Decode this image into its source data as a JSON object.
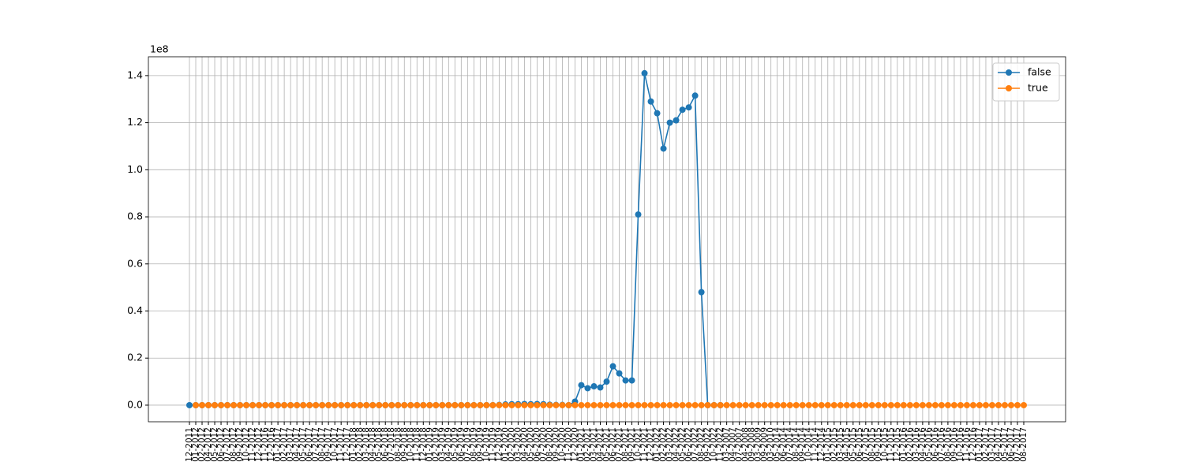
{
  "chart_data": {
    "type": "line",
    "y_offset_label": "1e8",
    "categories": [
      "12-2011",
      "01-2012",
      "02-2012",
      "04-2012",
      "05-2012",
      "06-2012",
      "07-2012",
      "08-2012",
      "09-2012",
      "10-2012",
      "11-2012",
      "12-2012",
      "11-2016",
      "12-2016",
      "01-2017",
      "02-2017",
      "03-2017",
      "04-2017",
      "05-2017",
      "06-2017",
      "07-2017",
      "08-2017",
      "09-2017",
      "10-2017",
      "11-2017",
      "12-2017",
      "01-2018",
      "02-2018",
      "03-2018",
      "04-2018",
      "05-2018",
      "06-2018",
      "07-2018",
      "08-2018",
      "09-2018",
      "10-2018",
      "11-2018",
      "12-2018",
      "01-2019",
      "02-2019",
      "03-2019",
      "04-2019",
      "05-2019",
      "06-2019",
      "07-2019",
      "08-2019",
      "09-2019",
      "10-2019",
      "11-2019",
      "12-2019",
      "01-2020",
      "02-2020",
      "03-2020",
      "04-2020",
      "05-2020",
      "06-2020",
      "07-2020",
      "08-2020",
      "09-2020",
      "10-2020",
      "11-2020",
      "12-2020",
      "01-2021",
      "02-2021",
      "03-2021",
      "04-2021",
      "05-2021",
      "06-2021",
      "07-2021",
      "08-2021",
      "09-2021",
      "10-2021",
      "11-2021",
      "12-2021",
      "01-2022",
      "02-2022",
      "03-2022",
      "04-2022",
      "05-2022",
      "06-2022",
      "07-2022",
      "08-2022",
      "09-2022",
      "10-2022",
      "11-2022",
      "03-2007",
      "04-2007",
      "07-2007",
      "04-2008",
      "09-2008",
      "03-2009",
      "09-2009",
      "03-2010",
      "05-2014",
      "06-2014",
      "07-2014",
      "08-2014",
      "09-2014",
      "10-2014",
      "11-2014",
      "12-2014",
      "01-2015",
      "02-2015",
      "03-2015",
      "04-2015",
      "05-2015",
      "06-2015",
      "07-2015",
      "08-2015",
      "09-2015",
      "10-2015",
      "11-2015",
      "12-2015",
      "01-2016",
      "02-2016",
      "03-2016",
      "04-2016",
      "05-2016",
      "06-2016",
      "07-2016",
      "08-2016",
      "09-2016",
      "10-2016",
      "11-2016",
      "12-2016",
      "01-2017",
      "02-2017",
      "03-2017",
      "04-2017",
      "05-2017",
      "06-2017",
      "07-2017",
      "08-2017"
    ],
    "series": [
      {
        "name": "false",
        "color": "#1f77b4",
        "values": [
          0,
          0,
          0,
          0,
          0,
          0,
          0,
          0,
          0,
          0,
          0,
          0,
          0,
          0,
          0,
          0,
          0,
          0,
          0,
          0,
          0,
          0,
          0,
          0,
          0,
          0,
          0,
          0,
          0,
          0,
          0,
          0,
          0,
          0,
          0,
          0,
          0,
          0,
          0,
          0,
          0,
          0,
          0,
          0,
          0,
          0,
          0,
          0,
          0,
          100000,
          300000,
          400000,
          400000,
          500000,
          400000,
          500000,
          400000,
          200000,
          100000,
          100000,
          0,
          1500000,
          8500000,
          7200000,
          8000000,
          7500000,
          10000000,
          16500000,
          13500000,
          10500000,
          10500000,
          81000000,
          141000000,
          129000000,
          124000000,
          109000000,
          120000000,
          121000000,
          125500000,
          126500000,
          131500000,
          48000000,
          0,
          0,
          0,
          null,
          null,
          null,
          null,
          null,
          null,
          null,
          null,
          null,
          null,
          null,
          null,
          null,
          null,
          null,
          null,
          null,
          null,
          null,
          null,
          null,
          null,
          null,
          null,
          null,
          null,
          null,
          null,
          null,
          null,
          null,
          null,
          null,
          null,
          null,
          null,
          null,
          null,
          null,
          null,
          null,
          null,
          null,
          null,
          null,
          null,
          null,
          null
        ]
      },
      {
        "name": "true",
        "color": "#ff7f0e",
        "values": [
          null,
          0,
          0,
          0,
          0,
          0,
          0,
          0,
          0,
          0,
          0,
          0,
          0,
          0,
          0,
          0,
          0,
          0,
          0,
          0,
          0,
          0,
          0,
          0,
          0,
          0,
          0,
          0,
          0,
          0,
          0,
          0,
          0,
          0,
          0,
          0,
          0,
          0,
          0,
          0,
          0,
          0,
          0,
          0,
          0,
          0,
          0,
          0,
          0,
          0,
          0,
          0,
          0,
          0,
          0,
          0,
          0,
          0,
          0,
          0,
          0,
          0,
          0,
          0,
          0,
          0,
          0,
          0,
          0,
          0,
          0,
          0,
          0,
          0,
          0,
          0,
          0,
          0,
          0,
          0,
          0,
          0,
          0,
          0,
          0,
          0,
          0,
          0,
          0,
          0,
          0,
          0,
          0,
          0,
          0,
          0,
          0,
          0,
          0,
          0,
          0,
          0,
          0,
          0,
          0,
          0,
          0,
          0,
          0,
          0,
          0,
          0,
          0,
          0,
          0,
          0,
          0,
          0,
          0,
          0,
          0,
          0,
          0,
          0,
          0,
          0,
          0,
          0,
          0,
          0,
          0,
          0,
          0
        ]
      }
    ],
    "ylim": [
      -7050000,
      148000000
    ],
    "yticks": [
      {
        "value": 0,
        "label": "0.0"
      },
      {
        "value": 20000000,
        "label": "0.2"
      },
      {
        "value": 40000000,
        "label": "0.4"
      },
      {
        "value": 60000000,
        "label": "0.6"
      },
      {
        "value": 80000000,
        "label": "0.8"
      },
      {
        "value": 100000000,
        "label": "1.0"
      },
      {
        "value": 120000000,
        "label": "1.2"
      },
      {
        "value": 140000000,
        "label": "1.4"
      }
    ],
    "grid": true,
    "legend": "upper right"
  }
}
